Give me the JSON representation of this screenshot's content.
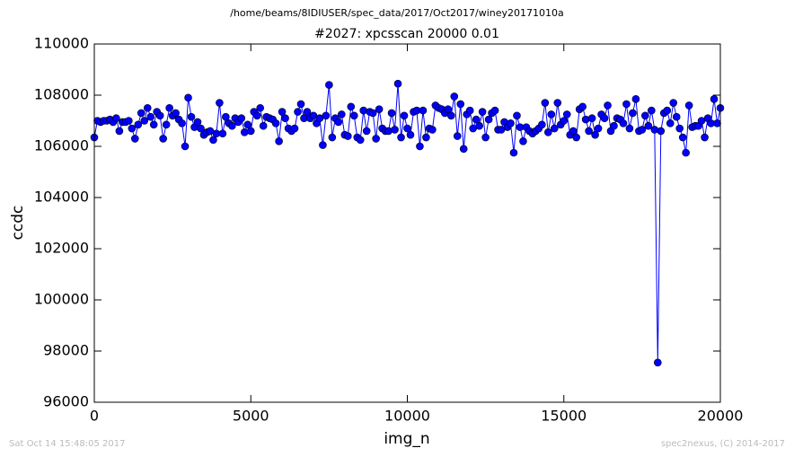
{
  "chart_data": {
    "type": "line",
    "suptitle": "/home/beams/8IDIUSER/spec_data/2017/Oct2017/winey20171010a",
    "title": "#2027: xpcsscan 20000 0.01",
    "xlabel": "img_n",
    "ylabel": "ccdc",
    "xlim": [
      0,
      20000
    ],
    "xticks": [
      0,
      5000,
      10000,
      15000,
      20000
    ],
    "ylim": [
      96000,
      110000
    ],
    "yticks": [
      96000,
      98000,
      100000,
      102000,
      104000,
      106000,
      108000,
      110000
    ],
    "grid": false,
    "series": [
      {
        "color": "#0000ff",
        "x": [
          0,
          100,
          200,
          300,
          400,
          500,
          600,
          700,
          800,
          900,
          1000,
          1100,
          1200,
          1300,
          1400,
          1500,
          1600,
          1700,
          1800,
          1900,
          2000,
          2100,
          2200,
          2300,
          2400,
          2500,
          2600,
          2700,
          2800,
          2900,
          3000,
          3100,
          3200,
          3300,
          3400,
          3500,
          3600,
          3700,
          3800,
          3900,
          4000,
          4100,
          4200,
          4300,
          4400,
          4500,
          4600,
          4700,
          4800,
          4900,
          5000,
          5100,
          5200,
          5300,
          5400,
          5500,
          5600,
          5700,
          5800,
          5900,
          6000,
          6100,
          6200,
          6300,
          6400,
          6500,
          6600,
          6700,
          6800,
          6900,
          7000,
          7100,
          7200,
          7300,
          7400,
          7500,
          7600,
          7700,
          7800,
          7900,
          8000,
          8100,
          8200,
          8300,
          8400,
          8500,
          8600,
          8700,
          8800,
          8900,
          9000,
          9100,
          9200,
          9300,
          9400,
          9500,
          9600,
          9700,
          9800,
          9900,
          10000,
          10100,
          10200,
          10300,
          10400,
          10500,
          10600,
          10700,
          10800,
          10900,
          11000,
          11100,
          11200,
          11300,
          11400,
          11500,
          11600,
          11700,
          11800,
          11900,
          12000,
          12100,
          12200,
          12300,
          12400,
          12500,
          12600,
          12700,
          12800,
          12900,
          13000,
          13100,
          13200,
          13300,
          13400,
          13500,
          13600,
          13700,
          13800,
          13900,
          14000,
          14100,
          14200,
          14300,
          14400,
          14500,
          14600,
          14700,
          14800,
          14900,
          15000,
          15100,
          15200,
          15300,
          15400,
          15500,
          15600,
          15700,
          15800,
          15900,
          16000,
          16100,
          16200,
          16300,
          16400,
          16500,
          16600,
          16700,
          16800,
          16900,
          17000,
          17100,
          17200,
          17300,
          17400,
          17500,
          17600,
          17700,
          17800,
          17900,
          18000,
          18100,
          18200,
          18300,
          18400,
          18500,
          18600,
          18700,
          18800,
          18900,
          19000,
          19100,
          19200,
          19300,
          19400,
          19500,
          19600,
          19700,
          19800,
          19900,
          20000
        ],
        "values": [
          106350,
          107000,
          106950,
          107000,
          107000,
          107050,
          106950,
          107100,
          106600,
          106950,
          106950,
          107000,
          106700,
          106300,
          106850,
          107300,
          107000,
          107500,
          107150,
          106850,
          107350,
          107200,
          106300,
          106850,
          107500,
          107200,
          107300,
          107050,
          106900,
          106000,
          107900,
          107150,
          106750,
          106950,
          106700,
          106450,
          106550,
          106600,
          106250,
          106500,
          107700,
          106500,
          107150,
          106900,
          106800,
          107100,
          106950,
          107100,
          106550,
          106850,
          106600,
          107350,
          107200,
          107500,
          106800,
          107150,
          107100,
          107050,
          106900,
          106200,
          107350,
          107100,
          106700,
          106600,
          106700,
          107350,
          107650,
          107100,
          107350,
          107100,
          107200,
          106900,
          107100,
          106050,
          107200,
          108400,
          106350,
          107100,
          106950,
          107250,
          106450,
          106400,
          107550,
          107200,
          106350,
          106250,
          107400,
          106600,
          107350,
          107300,
          106300,
          107450,
          106700,
          106600,
          106600,
          107300,
          106650,
          108450,
          106350,
          107200,
          106700,
          106450,
          107350,
          107400,
          106000,
          107400,
          106350,
          106700,
          106650,
          107600,
          107500,
          107450,
          107300,
          107450,
          107200,
          107950,
          106400,
          107650,
          105900,
          107250,
          107400,
          106700,
          107050,
          106800,
          107350,
          106350,
          107050,
          107300,
          107400,
          106650,
          106650,
          106950,
          106750,
          106900,
          105750,
          107200,
          106750,
          106200,
          106750,
          106600,
          106500,
          106600,
          106700,
          106850,
          107700,
          106550,
          107250,
          106700,
          107700,
          106850,
          107000,
          107250,
          106450,
          106600,
          106350,
          107450,
          107550,
          107050,
          106600,
          107100,
          106450,
          106700,
          107250,
          107100,
          107600,
          106600,
          106800,
          107100,
          107050,
          106900,
          107650,
          106700,
          107300,
          107850,
          106600,
          106650,
          107200,
          106800,
          107400,
          106650,
          97550,
          106600,
          107300,
          107400,
          106900,
          107700,
          107150,
          106700,
          106350,
          105750,
          107600,
          106750,
          106800,
          106800,
          107000,
          106350,
          107100,
          106900,
          107850,
          106900,
          107500
        ]
      }
    ]
  },
  "footer": {
    "left": "Sat Oct 14 15:48:05 2017",
    "right": "spec2nexus, (C) 2014-2017"
  }
}
